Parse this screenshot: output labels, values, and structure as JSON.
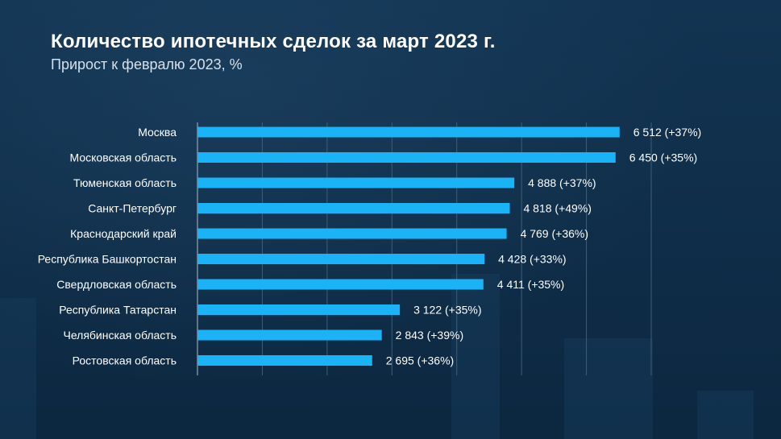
{
  "header": {
    "title": "Количество ипотечных сделок за март 2023 г.",
    "subtitle": "Прирост к февралю 2023, %"
  },
  "chart_data": {
    "type": "bar",
    "orientation": "horizontal",
    "title": "Количество ипотечных сделок за март 2023 г.",
    "subtitle": "Прирост к февралю 2023, %",
    "categories": [
      "Москва",
      "Московская область",
      "Тюменская область",
      "Санкт-Петербург",
      "Краснодарский край",
      "Республика Башкортостан",
      "Свердловская область",
      "Республика Татарстан",
      "Челябинская область",
      "Ростовская область"
    ],
    "values": [
      6512,
      6450,
      4888,
      4818,
      4769,
      4428,
      4411,
      3122,
      2843,
      2695
    ],
    "labels": [
      "6 512 (+37%)",
      "6 450 (+35%)",
      "4 888 (+37%)",
      "4 818 (+49%)",
      "4 769 (+36%)",
      "4 428 (+33%)",
      "4 411 (+35%)",
      "3 122 (+35%)",
      "2 843 (+39%)",
      "2 695 (+36%)"
    ],
    "growth_pct": [
      37,
      35,
      37,
      49,
      36,
      33,
      35,
      35,
      39,
      36
    ],
    "xlim": [
      0,
      7000
    ],
    "grid": true,
    "bar_color": "#1ab3f5"
  }
}
